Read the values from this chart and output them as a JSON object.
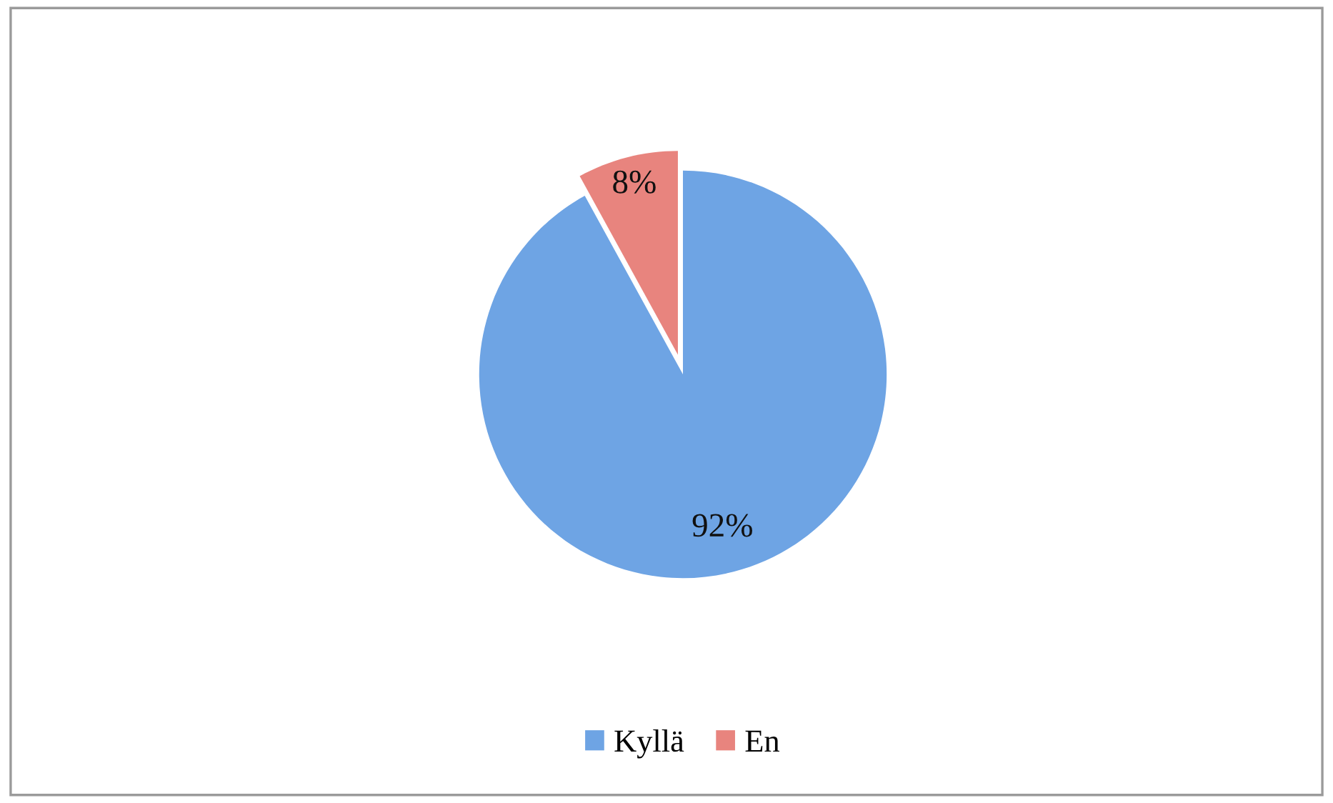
{
  "chart_data": {
    "type": "pie",
    "categories": [
      "Kyllä",
      "En"
    ],
    "values": [
      92,
      8
    ],
    "colors": [
      "#6ea4e4",
      "#e8847e"
    ],
    "value_labels": [
      "92%",
      "8%"
    ],
    "legend": "bottom"
  }
}
